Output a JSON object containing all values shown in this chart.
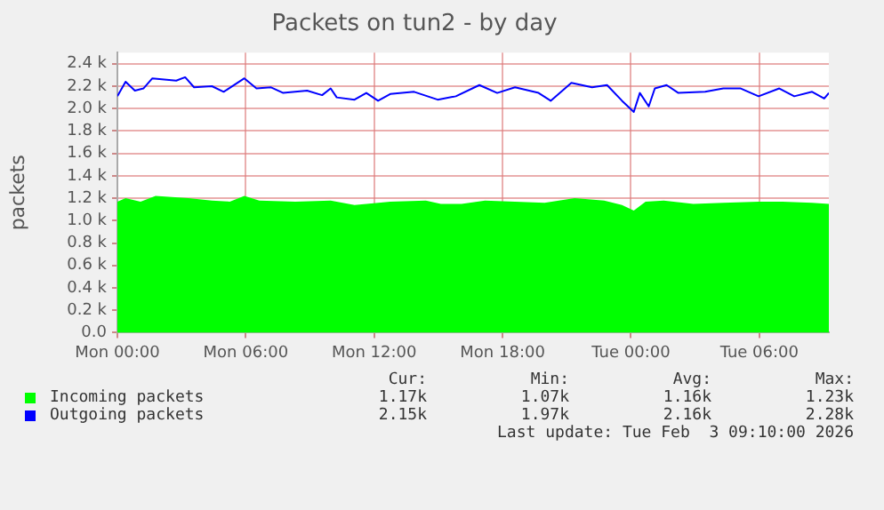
{
  "chart_data": {
    "type": "line",
    "title": "Packets on tun2 - by day",
    "ylabel": "packets",
    "xlim": [
      "2026-02-02T00:00",
      "2026-02-03T09:15"
    ],
    "ylim": [
      0,
      2500
    ],
    "xticks": [
      {
        "value": "2026-02-02T00:00",
        "label": "Mon 00:00"
      },
      {
        "value": "2026-02-02T06:00",
        "label": "Mon 06:00"
      },
      {
        "value": "2026-02-02T12:00",
        "label": "Mon 12:00"
      },
      {
        "value": "2026-02-02T18:00",
        "label": "Mon 18:00"
      },
      {
        "value": "2026-02-03T00:00",
        "label": "Tue 00:00"
      },
      {
        "value": "2026-02-03T06:00",
        "label": "Tue 06:00"
      }
    ],
    "yticks": [
      {
        "value": 0,
        "label": "0.0"
      },
      {
        "value": 200,
        "label": "0.2 k"
      },
      {
        "value": 400,
        "label": "0.4 k"
      },
      {
        "value": 600,
        "label": "0.6 k"
      },
      {
        "value": 800,
        "label": "0.8 k"
      },
      {
        "value": 1000,
        "label": "1.0 k"
      },
      {
        "value": 1200,
        "label": "1.2 k"
      },
      {
        "value": 1400,
        "label": "1.4 k"
      },
      {
        "value": 1600,
        "label": "1.6 k"
      },
      {
        "value": 1800,
        "label": "1.8 k"
      },
      {
        "value": 2000,
        "label": "2.0 k"
      },
      {
        "value": 2200,
        "label": "2.2 k"
      },
      {
        "value": 2400,
        "label": "2.4 k"
      }
    ],
    "grid": true,
    "legend": "bottom left",
    "series": [
      {
        "name": "Incoming packets",
        "type": "area",
        "color": "#00ff00",
        "x": [
          "2026-02-02T00:00",
          "2026-02-02T00:23",
          "2026-02-02T01:05",
          "2026-02-02T01:47",
          "2026-02-02T03:19",
          "2026-02-02T04:25",
          "2026-02-02T05:15",
          "2026-02-02T05:56",
          "2026-02-02T06:38",
          "2026-02-02T08:19",
          "2026-02-02T09:58",
          "2026-02-02T11:05",
          "2026-02-02T12:45",
          "2026-02-02T14:25",
          "2026-02-02T15:07",
          "2026-02-02T16:05",
          "2026-02-02T17:11",
          "2026-02-02T18:35",
          "2026-02-02T19:58",
          "2026-02-02T21:22",
          "2026-02-02T22:45",
          "2026-02-02T23:35",
          "2026-02-03T00:08",
          "2026-02-03T00:41",
          "2026-02-03T01:32",
          "2026-02-03T02:55",
          "2026-02-03T04:19",
          "2026-02-03T05:58",
          "2026-02-03T07:05",
          "2026-02-03T08:28",
          "2026-02-03T09:15"
        ],
        "values": [
          1170,
          1200,
          1170,
          1220,
          1200,
          1180,
          1170,
          1220,
          1180,
          1170,
          1180,
          1140,
          1170,
          1180,
          1150,
          1150,
          1180,
          1170,
          1160,
          1200,
          1180,
          1140,
          1090,
          1170,
          1180,
          1150,
          1160,
          1170,
          1170,
          1160,
          1150
        ]
      },
      {
        "name": "Outgoing packets",
        "type": "line",
        "color": "#0000ff",
        "x": [
          "2026-02-02T00:00",
          "2026-02-02T00:23",
          "2026-02-02T00:49",
          "2026-02-02T01:13",
          "2026-02-02T01:38",
          "2026-02-02T02:45",
          "2026-02-02T03:10",
          "2026-02-02T03:35",
          "2026-02-02T04:25",
          "2026-02-02T04:58",
          "2026-02-02T05:56",
          "2026-02-02T06:30",
          "2026-02-02T07:11",
          "2026-02-02T07:45",
          "2026-02-02T08:52",
          "2026-02-02T09:34",
          "2026-02-02T09:58",
          "2026-02-02T10:15",
          "2026-02-02T11:05",
          "2026-02-02T11:38",
          "2026-02-02T12:11",
          "2026-02-02T12:45",
          "2026-02-02T13:52",
          "2026-02-02T14:58",
          "2026-02-02T15:49",
          "2026-02-02T16:55",
          "2026-02-02T17:45",
          "2026-02-02T18:35",
          "2026-02-02T19:41",
          "2026-02-02T20:15",
          "2026-02-02T21:13",
          "2026-02-02T22:11",
          "2026-02-02T22:53",
          "2026-02-02T23:35",
          "2026-02-03T00:08",
          "2026-02-03T00:25",
          "2026-02-03T00:50",
          "2026-02-03T01:07",
          "2026-02-03T01:40",
          "2026-02-03T02:13",
          "2026-02-03T03:28",
          "2026-02-03T04:19",
          "2026-02-03T05:08",
          "2026-02-03T05:58",
          "2026-02-03T06:56",
          "2026-02-03T07:38",
          "2026-02-03T08:28",
          "2026-02-03T09:02",
          "2026-02-03T09:15"
        ],
        "values": [
          2110,
          2240,
          2160,
          2180,
          2270,
          2250,
          2280,
          2190,
          2200,
          2150,
          2270,
          2180,
          2190,
          2140,
          2160,
          2120,
          2180,
          2100,
          2080,
          2140,
          2070,
          2130,
          2150,
          2080,
          2110,
          2210,
          2140,
          2190,
          2140,
          2070,
          2230,
          2190,
          2210,
          2070,
          1970,
          2140,
          2020,
          2180,
          2210,
          2140,
          2150,
          2180,
          2180,
          2110,
          2180,
          2110,
          2150,
          2090,
          2140
        ]
      }
    ],
    "annotations": [
      "Cur:",
      "Min:",
      "Avg:",
      "Max:",
      "1.17k",
      "1.07k",
      "1.16k",
      "1.23k",
      "2.15k",
      "1.97k",
      "2.16k",
      "2.28k",
      "Last update: Tue Feb  3 09:10:00 2026"
    ]
  }
}
